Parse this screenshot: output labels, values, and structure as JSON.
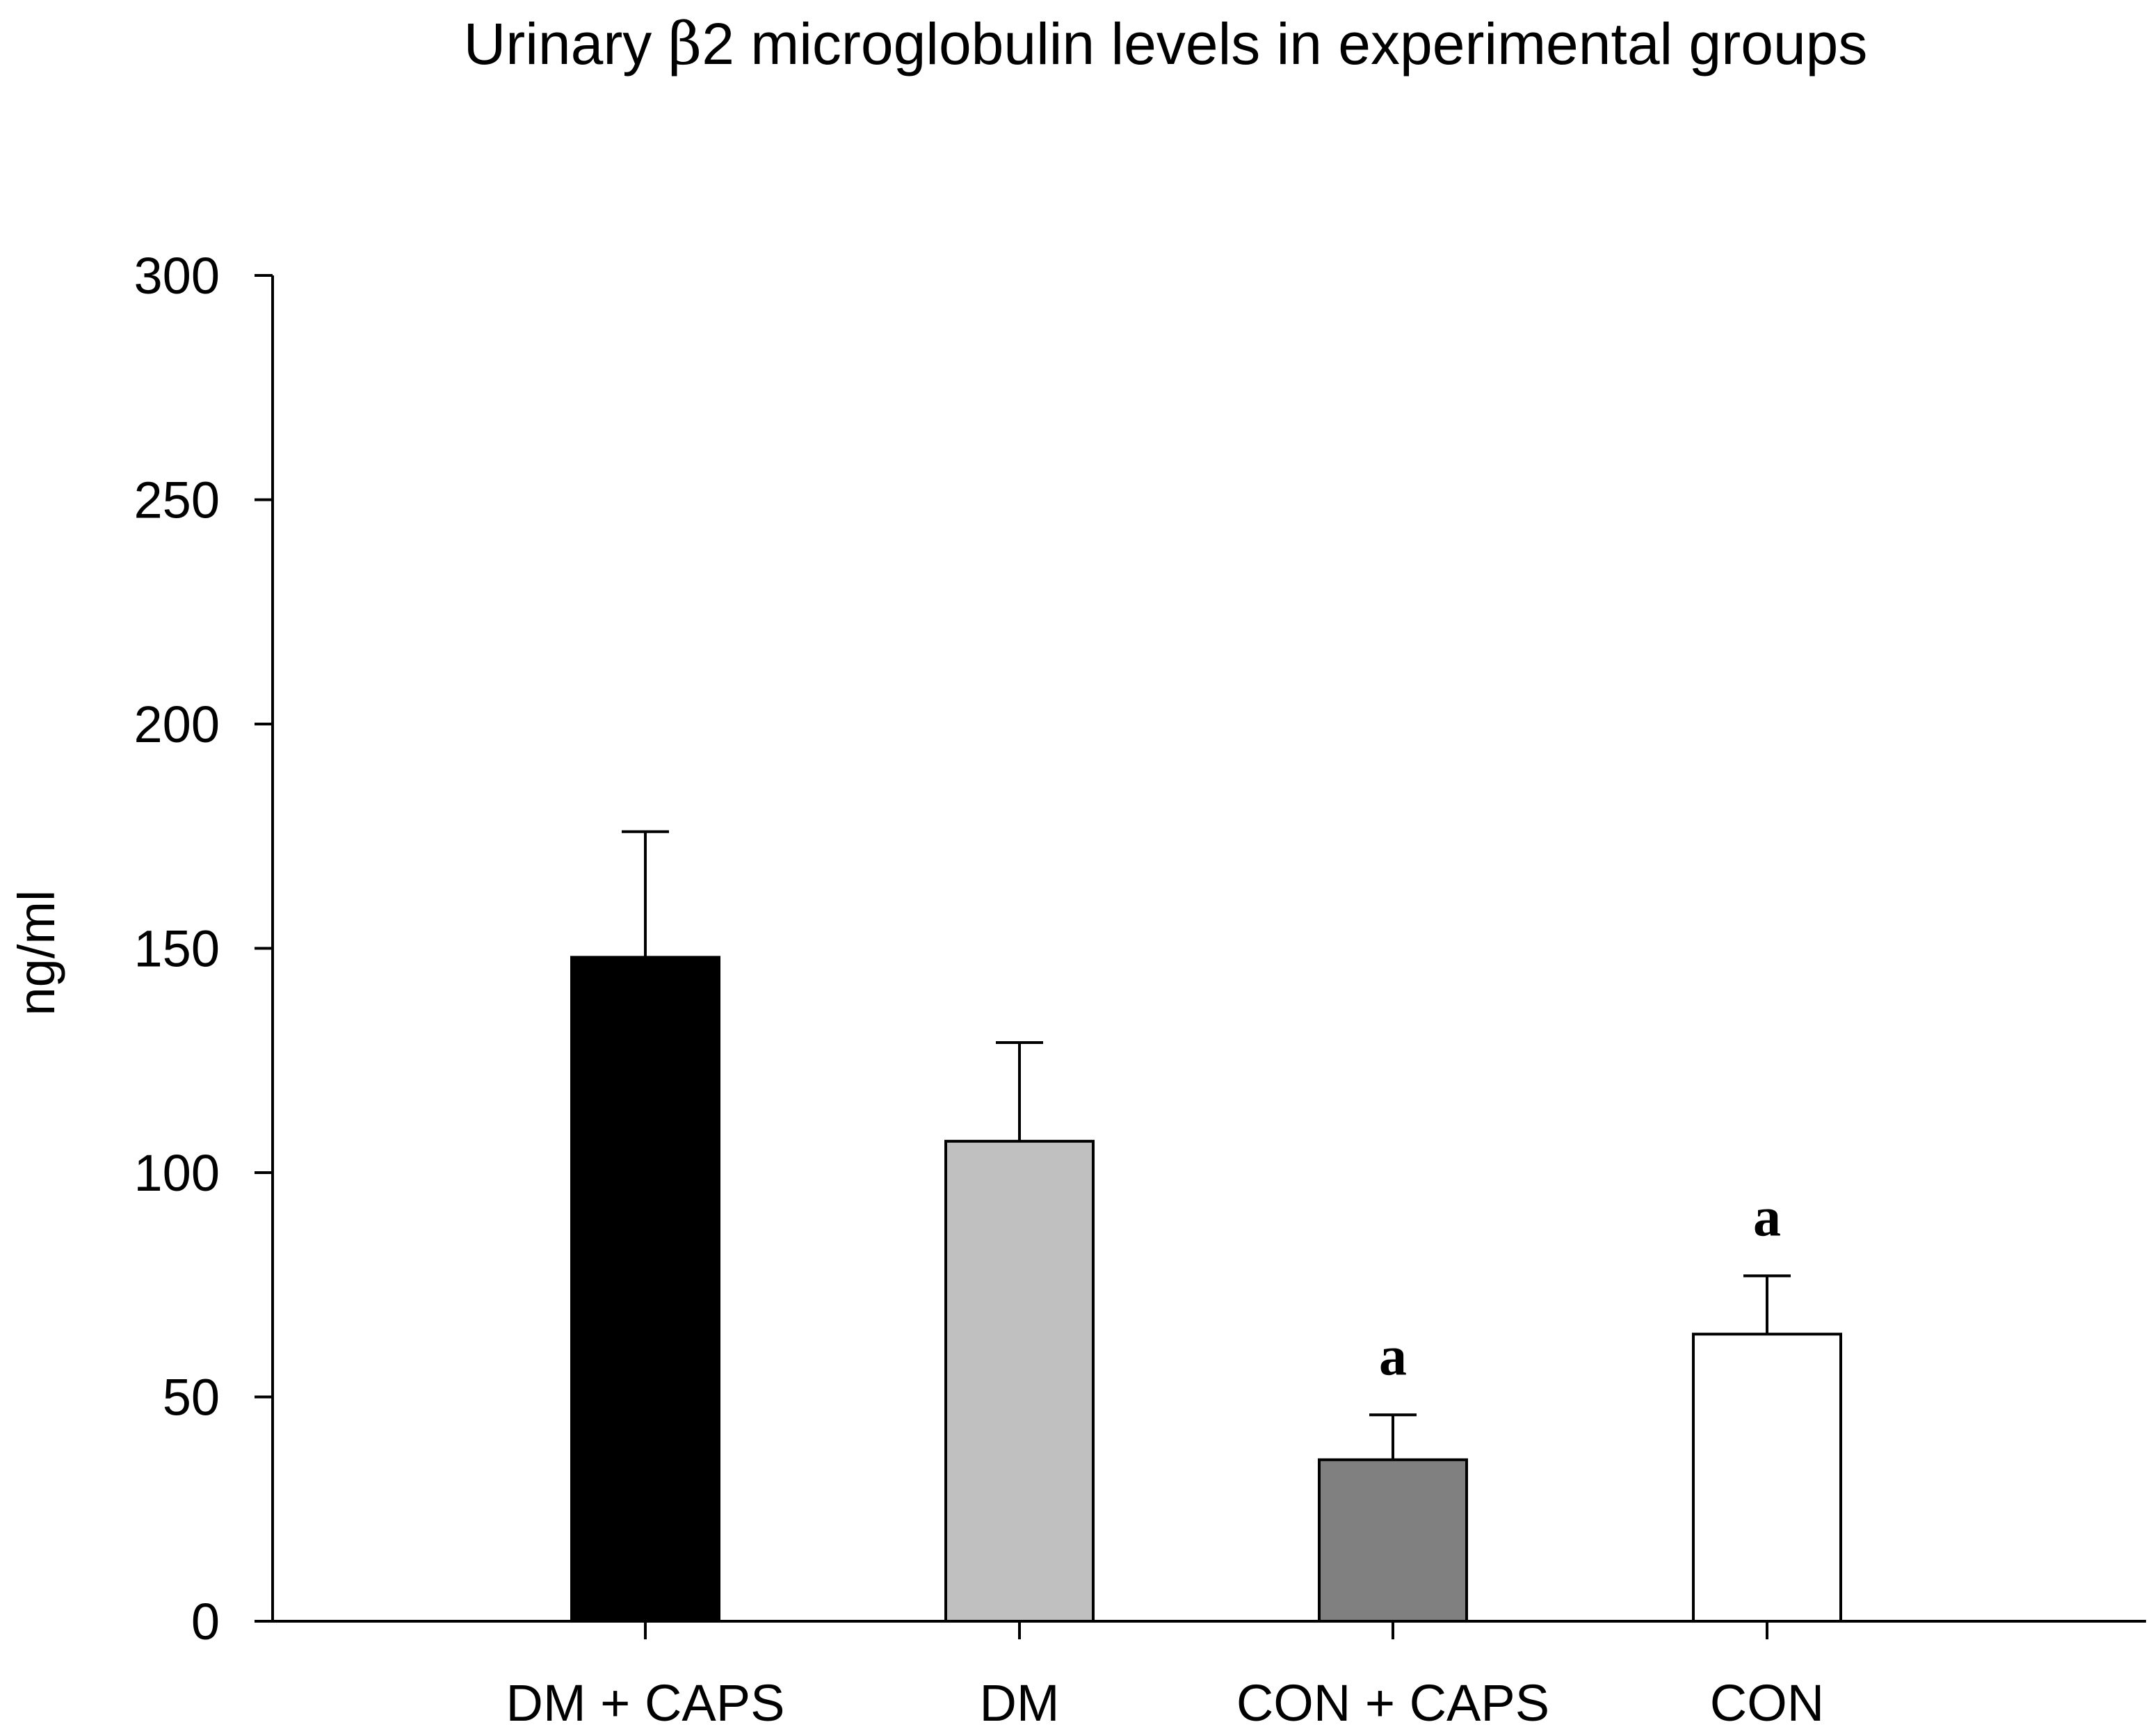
{
  "chart_data": {
    "type": "bar",
    "title_prefix": "Urinary ",
    "title_symbol": "β",
    "title_suffix": "2 microglobulin levels in experimental groups",
    "xlabel": "",
    "ylabel": "ng/ml",
    "ylim": [
      0,
      300
    ],
    "yticks": [
      0,
      50,
      100,
      150,
      200,
      250,
      300
    ],
    "categories": [
      "DM + CAPS",
      "DM",
      "CON + CAPS",
      "CON"
    ],
    "values": [
      148,
      107,
      36,
      64
    ],
    "errors": [
      28,
      22,
      10,
      13
    ],
    "colors": [
      "#000000",
      "#c0c0c0",
      "#808080",
      "#ffffff"
    ],
    "significance": [
      "",
      "",
      "a",
      "a"
    ]
  }
}
